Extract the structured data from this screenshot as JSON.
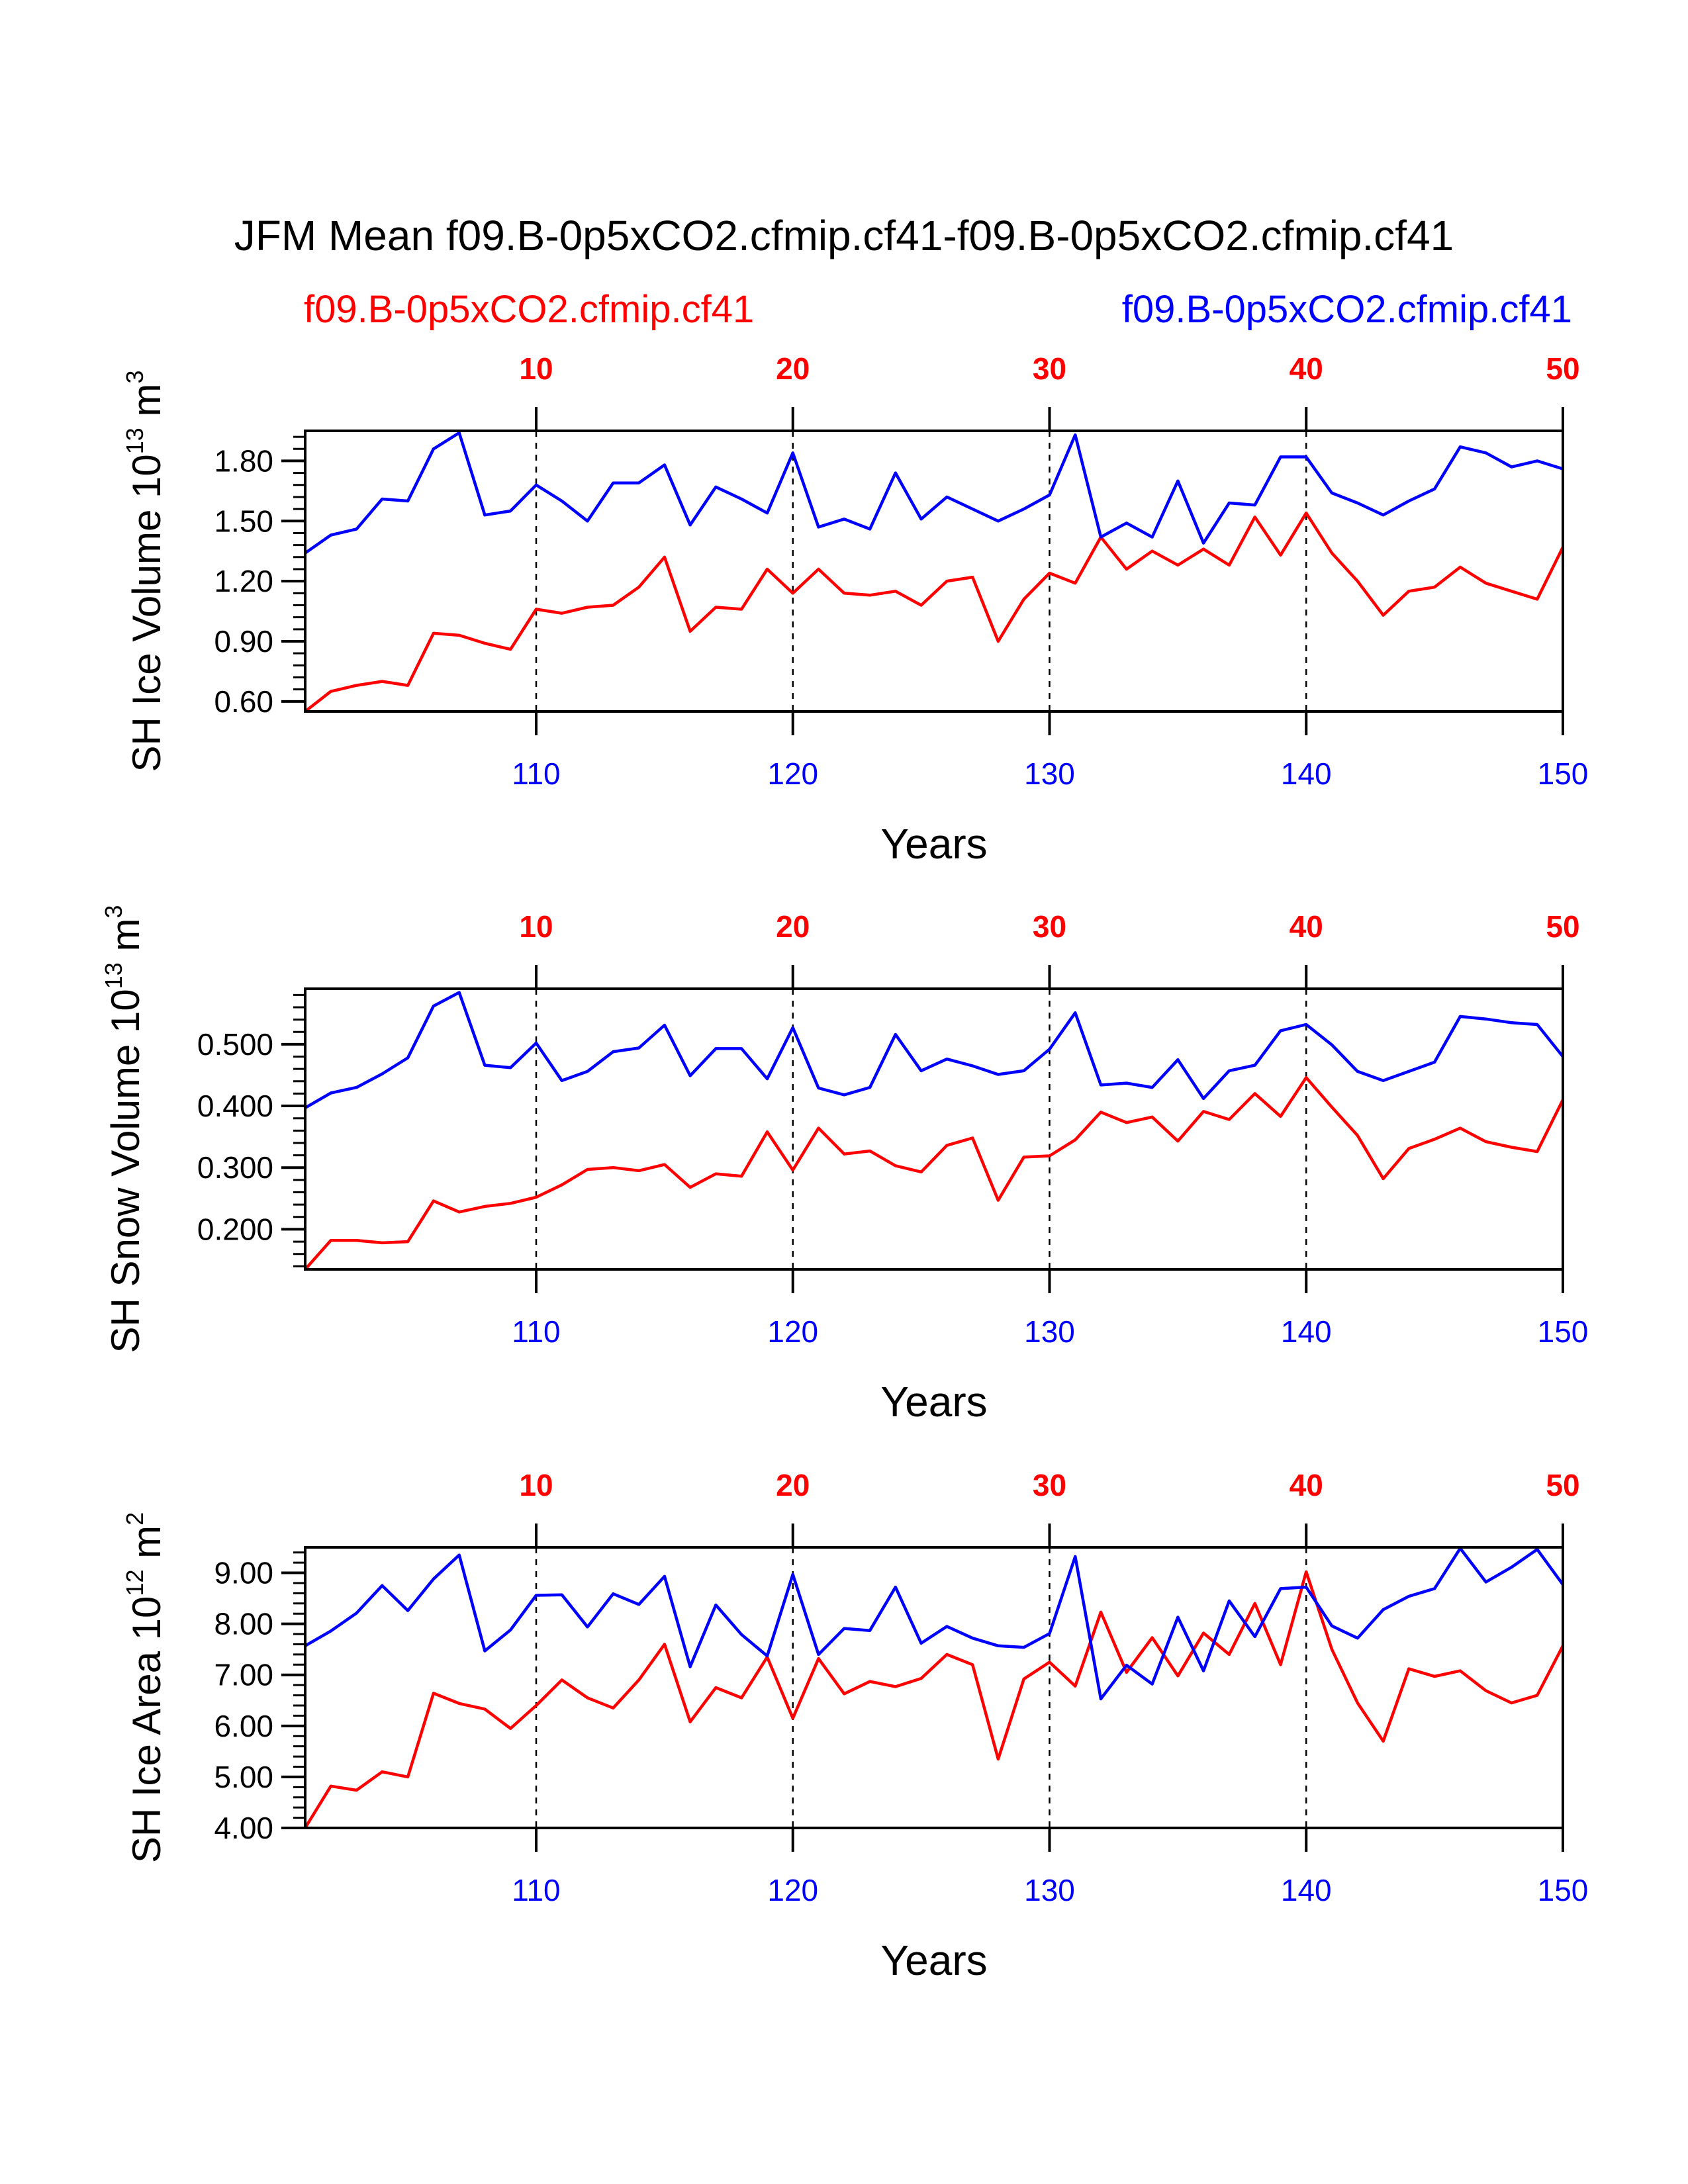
{
  "title": "JFM Mean f09.B-0p5xCO2.cfmip.cf41-f09.B-0p5xCO2.cfmip.cf41",
  "subtitle_left": "f09.B-0p5xCO2.cfmip.cf41",
  "subtitle_right": "f09.B-0p5xCO2.cfmip.cf41",
  "colors": {
    "series_red": "#ff0000",
    "series_blue": "#0000ff",
    "axis": "#000000"
  },
  "chart_data": [
    {
      "type": "line",
      "ylabel": {
        "prefix": "SH Ice Volume 10",
        "sup": "13",
        "unit": " m",
        "unit_sup": "3"
      },
      "xlabel": "Years",
      "xlim": [
        101,
        150
      ],
      "top_xlim": [
        1,
        50
      ],
      "ylim": [
        0.55,
        1.95
      ],
      "yticks": [
        "0.60",
        "0.90",
        "1.20",
        "1.50",
        "1.80"
      ],
      "yticks_values": [
        0.6,
        0.9,
        1.2,
        1.5,
        1.8
      ],
      "ymin_tick": 0.6,
      "ymajor_step": 0.3,
      "yminor_step": 0.06,
      "bottom_ticks": [
        "110",
        "120",
        "130",
        "140",
        "150"
      ],
      "bottom_ticks_values": [
        110,
        120,
        130,
        140,
        150
      ],
      "top_ticks": [
        "10",
        "20",
        "30",
        "40",
        "50"
      ],
      "grid_x": [
        110,
        120,
        130,
        140
      ],
      "x": [
        101,
        102,
        103,
        104,
        105,
        106,
        107,
        108,
        109,
        110,
        111,
        112,
        113,
        114,
        115,
        116,
        117,
        118,
        119,
        120,
        121,
        122,
        123,
        124,
        125,
        126,
        127,
        128,
        129,
        130,
        131,
        132,
        133,
        134,
        135,
        136,
        137,
        138,
        139,
        140,
        141,
        142,
        143,
        144,
        145,
        146,
        147,
        148,
        149,
        150
      ],
      "series": [
        {
          "color": "#ff0000",
          "values": [
            0.55,
            0.65,
            0.68,
            0.7,
            0.68,
            0.94,
            0.93,
            0.89,
            0.86,
            1.06,
            1.04,
            1.07,
            1.08,
            1.17,
            1.32,
            0.95,
            1.07,
            1.06,
            1.26,
            1.14,
            1.26,
            1.14,
            1.13,
            1.15,
            1.08,
            1.2,
            1.22,
            0.9,
            1.11,
            1.24,
            1.19,
            1.42,
            1.26,
            1.35,
            1.28,
            1.36,
            1.28,
            1.52,
            1.33,
            1.54,
            1.34,
            1.2,
            1.03,
            1.15,
            1.17,
            1.27,
            1.19,
            1.15,
            1.11,
            1.37
          ]
        },
        {
          "color": "#0000ff",
          "values": [
            1.34,
            1.43,
            1.46,
            1.61,
            1.6,
            1.86,
            1.94,
            1.53,
            1.55,
            1.68,
            1.6,
            1.5,
            1.69,
            1.69,
            1.78,
            1.48,
            1.67,
            1.61,
            1.54,
            1.84,
            1.47,
            1.51,
            1.46,
            1.74,
            1.51,
            1.62,
            1.56,
            1.5,
            1.56,
            1.63,
            1.93,
            1.42,
            1.49,
            1.42,
            1.7,
            1.39,
            1.59,
            1.58,
            1.82,
            1.82,
            1.64,
            1.59,
            1.53,
            1.6,
            1.66,
            1.87,
            1.84,
            1.77,
            1.8,
            1.76
          ]
        }
      ]
    },
    {
      "type": "line",
      "ylabel": {
        "prefix": "SH Snow Volume 10",
        "sup": "13",
        "unit": " m",
        "unit_sup": "3"
      },
      "xlabel": "Years",
      "xlim": [
        101,
        150
      ],
      "top_xlim": [
        1,
        50
      ],
      "ylim": [
        0.135,
        0.59
      ],
      "yticks": [
        "0.200",
        "0.300",
        "0.400",
        "0.500"
      ],
      "yticks_values": [
        0.2,
        0.3,
        0.4,
        0.5
      ],
      "ymin_tick": 0.2,
      "ymajor_step": 0.1,
      "yminor_step": 0.02,
      "bottom_ticks": [
        "110",
        "120",
        "130",
        "140",
        "150"
      ],
      "bottom_ticks_values": [
        110,
        120,
        130,
        140,
        150
      ],
      "top_ticks": [
        "10",
        "20",
        "30",
        "40",
        "50"
      ],
      "grid_x": [
        110,
        120,
        130,
        140
      ],
      "x": [
        101,
        102,
        103,
        104,
        105,
        106,
        107,
        108,
        109,
        110,
        111,
        112,
        113,
        114,
        115,
        116,
        117,
        118,
        119,
        120,
        121,
        122,
        123,
        124,
        125,
        126,
        127,
        128,
        129,
        130,
        131,
        132,
        133,
        134,
        135,
        136,
        137,
        138,
        139,
        140,
        141,
        142,
        143,
        144,
        145,
        146,
        147,
        148,
        149,
        150
      ],
      "series": [
        {
          "color": "#ff0000",
          "values": [
            0.135,
            0.182,
            0.182,
            0.178,
            0.18,
            0.246,
            0.228,
            0.237,
            0.242,
            0.252,
            0.272,
            0.297,
            0.3,
            0.295,
            0.305,
            0.268,
            0.29,
            0.286,
            0.358,
            0.296,
            0.364,
            0.322,
            0.327,
            0.303,
            0.293,
            0.336,
            0.348,
            0.247,
            0.317,
            0.319,
            0.345,
            0.39,
            0.373,
            0.382,
            0.343,
            0.391,
            0.378,
            0.42,
            0.383,
            0.446,
            0.398,
            0.352,
            0.282,
            0.331,
            0.346,
            0.364,
            0.342,
            0.333,
            0.326,
            0.41
          ]
        },
        {
          "color": "#0000ff",
          "values": [
            0.397,
            0.421,
            0.43,
            0.452,
            0.478,
            0.562,
            0.584,
            0.466,
            0.462,
            0.502,
            0.441,
            0.456,
            0.488,
            0.494,
            0.531,
            0.449,
            0.493,
            0.493,
            0.444,
            0.527,
            0.429,
            0.418,
            0.43,
            0.516,
            0.457,
            0.476,
            0.465,
            0.451,
            0.457,
            0.492,
            0.551,
            0.434,
            0.437,
            0.43,
            0.475,
            0.412,
            0.457,
            0.466,
            0.522,
            0.532,
            0.499,
            0.456,
            0.441,
            0.456,
            0.471,
            0.545,
            0.541,
            0.535,
            0.532,
            0.48
          ]
        }
      ]
    },
    {
      "type": "line",
      "ylabel": {
        "prefix": "SH Ice Area 10",
        "sup": "12",
        "unit": " m",
        "unit_sup": "2"
      },
      "xlabel": "Years",
      "xlim": [
        101,
        150
      ],
      "top_xlim": [
        1,
        50
      ],
      "ylim": [
        4.0,
        9.5
      ],
      "yticks": [
        "4.00",
        "5.00",
        "6.00",
        "7.00",
        "8.00",
        "9.00"
      ],
      "yticks_values": [
        4,
        5,
        6,
        7,
        8,
        9
      ],
      "ymin_tick": 4.0,
      "ymajor_step": 1.0,
      "yminor_step": 0.2,
      "bottom_ticks": [
        "110",
        "120",
        "130",
        "140",
        "150"
      ],
      "bottom_ticks_values": [
        110,
        120,
        130,
        140,
        150
      ],
      "top_ticks": [
        "10",
        "20",
        "30",
        "40",
        "50"
      ],
      "grid_x": [
        110,
        120,
        130,
        140
      ],
      "x": [
        101,
        102,
        103,
        104,
        105,
        106,
        107,
        108,
        109,
        110,
        111,
        112,
        113,
        114,
        115,
        116,
        117,
        118,
        119,
        120,
        121,
        122,
        123,
        124,
        125,
        126,
        127,
        128,
        129,
        130,
        131,
        132,
        133,
        134,
        135,
        136,
        137,
        138,
        139,
        140,
        141,
        142,
        143,
        144,
        145,
        146,
        147,
        148,
        149,
        150
      ],
      "series": [
        {
          "color": "#ff0000",
          "values": [
            4.0,
            4.82,
            4.74,
            5.1,
            5.0,
            6.64,
            6.44,
            6.33,
            5.95,
            6.4,
            6.9,
            6.55,
            6.35,
            6.9,
            7.6,
            6.08,
            6.75,
            6.55,
            7.35,
            6.15,
            7.32,
            6.63,
            6.87,
            6.77,
            6.93,
            7.4,
            7.2,
            5.35,
            6.92,
            7.25,
            6.78,
            8.23,
            7.05,
            7.73,
            6.98,
            7.82,
            7.4,
            8.4,
            7.2,
            9.02,
            7.5,
            6.45,
            5.7,
            7.12,
            6.97,
            7.08,
            6.69,
            6.45,
            6.6,
            7.57
          ]
        },
        {
          "color": "#0000ff",
          "values": [
            7.57,
            7.86,
            8.21,
            8.75,
            8.26,
            8.88,
            9.35,
            7.47,
            7.88,
            8.56,
            8.57,
            7.94,
            8.59,
            8.38,
            8.93,
            7.16,
            8.37,
            7.79,
            7.37,
            8.97,
            7.4,
            7.91,
            7.87,
            8.72,
            7.62,
            7.95,
            7.72,
            7.57,
            7.54,
            7.81,
            9.32,
            6.53,
            7.19,
            6.82,
            8.13,
            7.08,
            8.45,
            7.75,
            8.69,
            8.72,
            7.96,
            7.72,
            8.28,
            8.54,
            8.69,
            9.48,
            8.82,
            9.11,
            9.46,
            8.77
          ]
        }
      ]
    }
  ]
}
